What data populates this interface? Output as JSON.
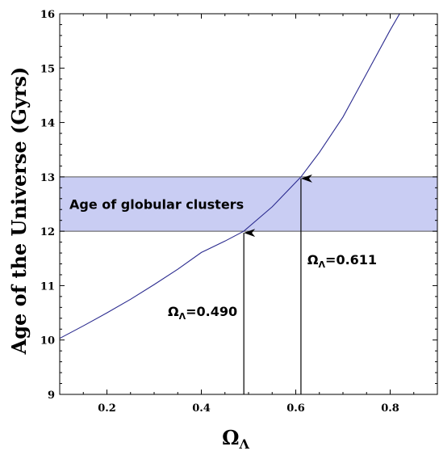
{
  "chart_data": {
    "type": "line",
    "xlabel": "Ω",
    "xlabel_sub": "Λ",
    "ylabel": "Age of the Universe (Gyrs)",
    "xlim": [
      0.1,
      0.9
    ],
    "ylim": [
      9,
      16
    ],
    "x_ticks": [
      0.2,
      0.4,
      0.6,
      0.8
    ],
    "x_tick_labels": [
      "0.2",
      "0.4",
      "0.6",
      "0.8"
    ],
    "y_ticks": [
      9,
      10,
      11,
      12,
      13,
      14,
      15,
      16
    ],
    "y_tick_labels": [
      "9",
      "10",
      "11",
      "12",
      "13",
      "14",
      "15",
      "16"
    ],
    "grid": false,
    "series": [
      {
        "color": "#2b2b8f",
        "x": [
          0.1,
          0.15,
          0.2,
          0.25,
          0.3,
          0.35,
          0.4,
          0.45,
          0.49,
          0.55,
          0.611,
          0.65,
          0.7,
          0.75,
          0.8,
          0.82
        ],
        "y": [
          10.03,
          10.26,
          10.5,
          10.75,
          11.02,
          11.3,
          11.61,
          11.82,
          12.0,
          12.45,
          13.0,
          13.45,
          14.1,
          14.9,
          15.7,
          16.0
        ]
      }
    ],
    "band": {
      "y_range": [
        12,
        13
      ],
      "color": "#c9cdf3",
      "border_color": "#555555",
      "label": "Age of globular clusters"
    },
    "annotations": [
      {
        "x": 0.49,
        "y": 12,
        "label": "Ω",
        "label_sub": "Λ",
        "label_value": "=0.490"
      },
      {
        "x": 0.611,
        "y": 13,
        "label": "Ω",
        "label_sub": "Λ",
        "label_value": "=0.611"
      }
    ]
  }
}
